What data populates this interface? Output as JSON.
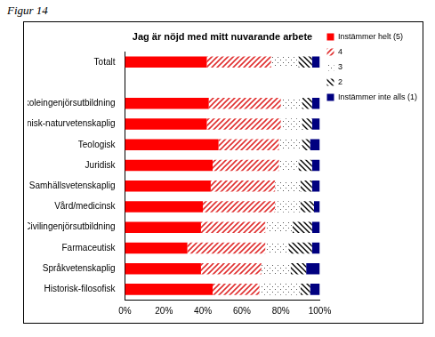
{
  "figure": "Figur 14",
  "chart_data": {
    "type": "bar",
    "orientation": "horizontal",
    "stacked": true,
    "title": "Jag är nöjd med mitt nuvarande arbete",
    "categories": [
      "Totalt",
      null,
      "Högskoleingenjörsutbildning",
      "Teknisk-naturvetenskaplig",
      "Teologisk",
      "Juridisk",
      "Samhällsvetenskaplig",
      "Vård/medicinsk",
      "Civilingenjörsutbildning",
      "Farmaceutisk",
      "Språkvetenskaplig",
      "Historisk-filosofisk"
    ],
    "series": [
      {
        "name": "Instämmer helt (5)",
        "color": "#ff0000",
        "values": [
          42,
          null,
          43,
          42,
          48,
          45,
          44,
          40,
          39,
          32,
          39,
          45
        ]
      },
      {
        "name": "4",
        "color": "#e03030",
        "values": [
          33,
          null,
          37,
          38,
          31,
          34,
          33,
          37,
          33,
          40,
          31,
          24
        ]
      },
      {
        "name": "3",
        "color": "#ffffff",
        "values": [
          14,
          null,
          11,
          11,
          12,
          10,
          13,
          13,
          14,
          12,
          15,
          21
        ]
      },
      {
        "name": "2",
        "color": "#000000",
        "values": [
          7,
          null,
          5,
          5,
          4,
          7,
          6,
          7,
          10,
          12,
          8,
          5
        ]
      },
      {
        "name": "Instämmer inte alls (1)",
        "color": "#000080",
        "values": [
          4,
          null,
          4,
          4,
          5,
          4,
          4,
          3,
          4,
          4,
          7,
          5
        ]
      }
    ],
    "xlim": [
      0,
      100
    ],
    "xticks": [
      {
        "value": 0,
        "label": "0%"
      },
      {
        "value": 20,
        "label": "20%"
      },
      {
        "value": 40,
        "label": "40%"
      },
      {
        "value": 60,
        "label": "60%"
      },
      {
        "value": 80,
        "label": "80%"
      },
      {
        "value": 100,
        "label": "100%"
      }
    ],
    "grid": false,
    "legend": "right"
  }
}
